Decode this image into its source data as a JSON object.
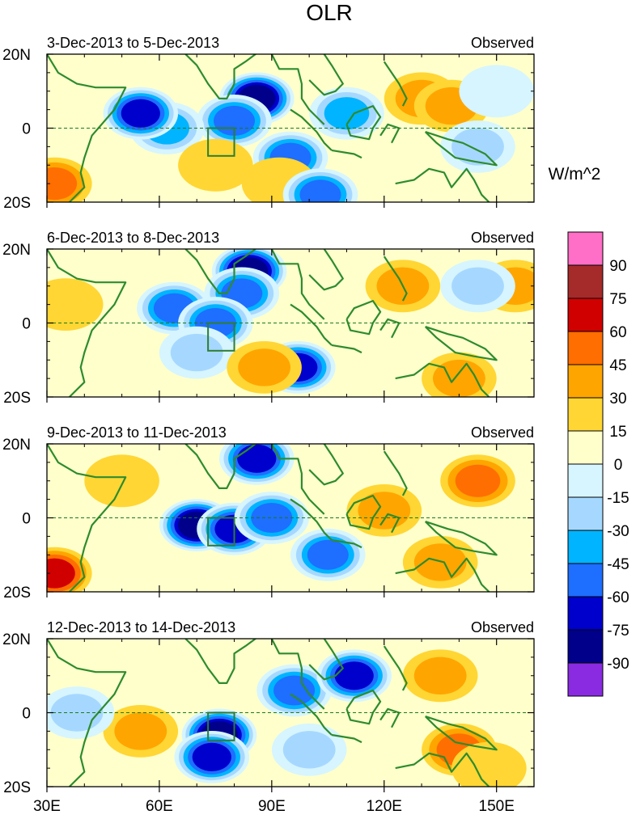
{
  "chart_data": {
    "type": "heatmap",
    "title": "OLR",
    "units": "W/m^2",
    "x_ticks": [
      "30E",
      "60E",
      "90E",
      "120E",
      "150E"
    ],
    "x_values": [
      30,
      60,
      90,
      120,
      150
    ],
    "xlim": [
      30,
      160
    ],
    "ylim": [
      -20,
      20
    ],
    "y_ticks": [
      "20N",
      "0",
      "20S"
    ],
    "y_values": [
      20,
      0,
      -20
    ],
    "colorbar": {
      "labels": [
        "90",
        "75",
        "60",
        "45",
        "30",
        "15",
        "0",
        "-15",
        "-30",
        "-45",
        "-60",
        "-75",
        "-90"
      ],
      "colors": [
        "#ff6ec7",
        "#a52a2a",
        "#d10000",
        "#ff6e00",
        "#ffa500",
        "#ffd633",
        "#ffffcc",
        "#d6f5ff",
        "#a6d8ff",
        "#00b4ff",
        "#1e6eff",
        "#0000cd",
        "#00008b",
        "#8a2be2"
      ]
    },
    "panels": [
      {
        "period": "3-Dec-2013 to 5-Dec-2013",
        "label": "Observed",
        "anomalies": [
          {
            "lon": 86,
            "lat": 8,
            "value": -90
          },
          {
            "lon": 80,
            "lat": 2,
            "value": -60
          },
          {
            "lon": 62,
            "lat": 0,
            "value": -45
          },
          {
            "lon": 55,
            "lat": 4,
            "value": -75
          },
          {
            "lon": 95,
            "lat": -8,
            "value": -60
          },
          {
            "lon": 110,
            "lat": 4,
            "value": -45
          },
          {
            "lon": 130,
            "lat": 8,
            "value": 30
          },
          {
            "lon": 138,
            "lat": 6,
            "value": 30
          },
          {
            "lon": 32,
            "lat": -15,
            "value": 45
          },
          {
            "lon": 75,
            "lat": -10,
            "value": 15
          },
          {
            "lon": 92,
            "lat": -15,
            "value": 15
          },
          {
            "lon": 103,
            "lat": -18,
            "value": -60
          },
          {
            "lon": 145,
            "lat": -5,
            "value": -30
          },
          {
            "lon": 150,
            "lat": 10,
            "value": -15
          }
        ]
      },
      {
        "period": "6-Dec-2013 to 8-Dec-2013",
        "label": "Observed",
        "anomalies": [
          {
            "lon": 84,
            "lat": 14,
            "value": -90
          },
          {
            "lon": 82,
            "lat": 8,
            "value": -60
          },
          {
            "lon": 64,
            "lat": 4,
            "value": -60
          },
          {
            "lon": 75,
            "lat": 0,
            "value": -60
          },
          {
            "lon": 97,
            "lat": -12,
            "value": -75
          },
          {
            "lon": 70,
            "lat": -8,
            "value": -30
          },
          {
            "lon": 88,
            "lat": -12,
            "value": 30
          },
          {
            "lon": 140,
            "lat": -15,
            "value": 30
          },
          {
            "lon": 125,
            "lat": 10,
            "value": 30
          },
          {
            "lon": 155,
            "lat": 10,
            "value": 30
          },
          {
            "lon": 35,
            "lat": 5,
            "value": 15
          },
          {
            "lon": 145,
            "lat": 10,
            "value": -30
          }
        ]
      },
      {
        "period": "9-Dec-2013 to 11-Dec-2013",
        "label": "Observed",
        "anomalies": [
          {
            "lon": 70,
            "lat": -2,
            "value": -90
          },
          {
            "lon": 80,
            "lat": -3,
            "value": -75
          },
          {
            "lon": 86,
            "lat": 16,
            "value": -75
          },
          {
            "lon": 90,
            "lat": 0,
            "value": -60
          },
          {
            "lon": 105,
            "lat": -10,
            "value": -60
          },
          {
            "lon": 145,
            "lat": 10,
            "value": 45
          },
          {
            "lon": 135,
            "lat": -12,
            "value": 30
          },
          {
            "lon": 32,
            "lat": -15,
            "value": 60
          },
          {
            "lon": 50,
            "lat": 10,
            "value": 15
          },
          {
            "lon": 120,
            "lat": 2,
            "value": 30
          }
        ]
      },
      {
        "period": "12-Dec-2013 to 14-Dec-2013",
        "label": "Observed",
        "anomalies": [
          {
            "lon": 76,
            "lat": -6,
            "value": -90
          },
          {
            "lon": 74,
            "lat": -12,
            "value": -75
          },
          {
            "lon": 96,
            "lat": 6,
            "value": -60
          },
          {
            "lon": 112,
            "lat": 10,
            "value": -75
          },
          {
            "lon": 140,
            "lat": -10,
            "value": 45
          },
          {
            "lon": 135,
            "lat": 10,
            "value": 30
          },
          {
            "lon": 55,
            "lat": -5,
            "value": 30
          },
          {
            "lon": 100,
            "lat": -10,
            "value": -30
          },
          {
            "lon": 38,
            "lat": 0,
            "value": -30
          },
          {
            "lon": 148,
            "lat": -15,
            "value": 15
          }
        ]
      }
    ]
  }
}
